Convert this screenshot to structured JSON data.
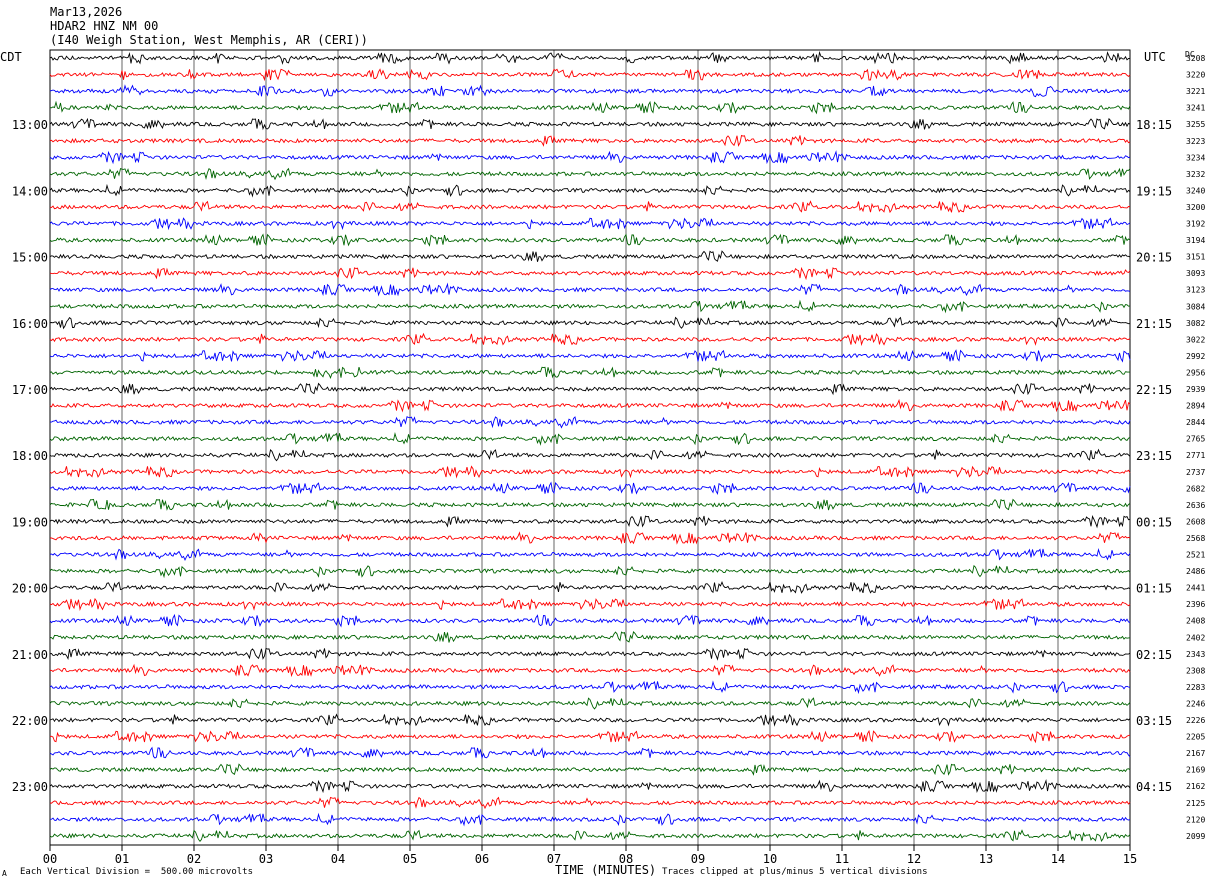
{
  "header": {
    "date": "Mar13,2026",
    "station": "HDAR2 HNZ NM 00",
    "location": "(I40 Weigh Station, West Memphis, AR (CERI))"
  },
  "left_tz": "CDT",
  "right_tz": "UTC",
  "dc_label": "DC",
  "footer": {
    "scale_note": "Each Vertical Division =  500.00 microvolts",
    "xlabel": "TIME (MINUTES)",
    "clip_note": "Traces clipped at plus/minus 5 vertical divisions",
    "corner_mark": "A"
  },
  "colors": {
    "trace_cycle": [
      "#000000",
      "#ff0000",
      "#0000ff",
      "#006400"
    ],
    "grid": "#000000"
  },
  "chart_data": {
    "type": "line",
    "title": "HDAR2 HNZ NM 00",
    "xlabel": "TIME (MINUTES)",
    "xlim": [
      0,
      15
    ],
    "xticks": [
      "00",
      "01",
      "02",
      "03",
      "04",
      "05",
      "06",
      "07",
      "08",
      "09",
      "10",
      "11",
      "12",
      "13",
      "14",
      "15"
    ],
    "trace_count": 48,
    "left_hour_labels": [
      "13:00",
      "14:00",
      "15:00",
      "16:00",
      "17:00",
      "18:00",
      "19:00",
      "20:00",
      "21:00",
      "22:00",
      "23:00"
    ],
    "right_hour_labels": [
      "18:15",
      "19:15",
      "20:15",
      "21:15",
      "22:15",
      "23:15",
      "00:15",
      "01:15",
      "02:15",
      "03:15",
      "04:15"
    ],
    "dc_offsets": [
      3208,
      3220,
      3221,
      3241,
      3255,
      3223,
      3234,
      3232,
      3240,
      3200,
      3192,
      3194,
      3151,
      3093,
      3123,
      3084,
      3082,
      3022,
      2992,
      2956,
      2939,
      2894,
      2844,
      2765,
      2771,
      2737,
      2682,
      2636,
      2608,
      2568,
      2521,
      2486,
      2441,
      2396,
      2408,
      2402,
      2343,
      2308,
      2283,
      2246,
      2226,
      2205,
      2167,
      2169,
      2162,
      2125,
      2120,
      2099
    ]
  }
}
